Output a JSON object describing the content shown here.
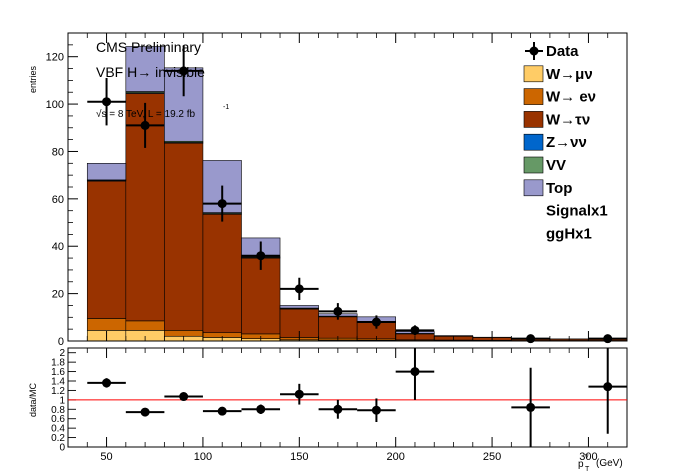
{
  "chart_data": {
    "type": "bar",
    "subtype": "stacked-histogram-with-ratio",
    "annotations": {
      "experiment": "CMS Preliminary",
      "process": "VBF H→ invisible",
      "energy_lumi": "√s = 8 TeV, L = 19.2 fb",
      "lumi_exponent": "-1"
    },
    "ylabel": "entries",
    "xlabel": "p",
    "xlabel_sup": "ν",
    "xlabel_sub": "T",
    "xlabel_unit": "(GeV)",
    "xlim": [
      30,
      320
    ],
    "ylim": [
      0,
      130
    ],
    "xticks": [
      "50",
      "100",
      "150",
      "200",
      "250",
      "300"
    ],
    "yticks": [
      "0",
      "20",
      "40",
      "60",
      "80",
      "100",
      "120"
    ],
    "bin_edges": [
      40,
      60,
      80,
      100,
      120,
      140,
      160,
      180,
      200,
      220,
      240,
      260,
      280,
      300,
      320
    ],
    "legend_position": "top-right",
    "legend": [
      {
        "label": "Data",
        "kind": "marker"
      },
      {
        "label": "W→μν",
        "kind": "box",
        "color": "#ffcc66"
      },
      {
        "label": "W→ eν",
        "kind": "box",
        "color": "#cc6600"
      },
      {
        "label": "W→τν",
        "kind": "box",
        "color": "#993300"
      },
      {
        "label": "Z→νν",
        "kind": "box",
        "color": "#0066cc"
      },
      {
        "label": "VV",
        "kind": "box",
        "color": "#669966"
      },
      {
        "label": "Top",
        "kind": "box",
        "color": "#9999cc"
      },
      {
        "label": "Signalx1",
        "kind": "text"
      },
      {
        "label": "ggHx1",
        "kind": "text"
      }
    ],
    "series": [
      {
        "name": "W→μν",
        "color": "#ffcc66",
        "values": [
          4.5,
          4.5,
          2,
          1.5,
          1,
          0.5,
          0.4,
          0.3,
          0.2,
          0.2,
          0.1,
          0.1,
          0.1,
          0.1
        ]
      },
      {
        "name": "W→ eν",
        "color": "#cc6600",
        "values": [
          5,
          4,
          2.5,
          2,
          2,
          1,
          0.8,
          0.6,
          0.3,
          0.2,
          0.2,
          0.1,
          0.1,
          0.1
        ]
      },
      {
        "name": "W→τν",
        "color": "#993300",
        "values": [
          58,
          96,
          79,
          50,
          32,
          12,
          9,
          7,
          2.5,
          1.6,
          1.2,
          0.7,
          0.6,
          0.8
        ]
      },
      {
        "name": "Z→νν",
        "color": "#0066cc",
        "values": [
          0.3,
          0.3,
          0.3,
          0.3,
          0.2,
          0.1,
          0.1,
          0.1,
          0.1,
          0,
          0,
          0,
          0,
          0
        ]
      },
      {
        "name": "VV",
        "color": "#669966",
        "values": [
          0.2,
          0.5,
          0.5,
          0.4,
          0.3,
          0.3,
          0.2,
          0.2,
          0.1,
          0,
          0,
          0,
          0,
          0
        ]
      },
      {
        "name": "Top",
        "color": "#9999cc",
        "values": [
          7,
          19,
          31,
          22,
          8,
          1.1,
          1,
          2,
          0.8,
          0.3,
          0.1,
          0.1,
          0.1,
          0.1
        ]
      }
    ],
    "data_points": [
      {
        "x": 50,
        "y": 101,
        "err": 10
      },
      {
        "x": 70,
        "y": 91,
        "err": 9.5
      },
      {
        "x": 90,
        "y": 114,
        "err": 10.7
      },
      {
        "x": 110,
        "y": 58,
        "err": 7.6
      },
      {
        "x": 130,
        "y": 36,
        "err": 6
      },
      {
        "x": 150,
        "y": 22,
        "err": 4.7
      },
      {
        "x": 170,
        "y": 12.5,
        "err": 3.5
      },
      {
        "x": 190,
        "y": 8,
        "err": 2.8
      },
      {
        "x": 210,
        "y": 4.5,
        "err": 2.1
      },
      {
        "x": 270,
        "y": 1,
        "err": 1
      },
      {
        "x": 310,
        "y": 1,
        "err": 1
      }
    ],
    "ratio": {
      "ylabel": "data/MC",
      "ylim": [
        0,
        2.1
      ],
      "yticks": [
        "0",
        "0.2",
        "0.4",
        "0.6",
        "0.8",
        "1",
        "1.2",
        "1.4",
        "1.6",
        "1.8",
        "2"
      ],
      "reference": 1,
      "points": [
        {
          "x": 50,
          "y": 1.36,
          "err": 0.1
        },
        {
          "x": 70,
          "y": 0.74,
          "err": 0.03
        },
        {
          "x": 90,
          "y": 1.07,
          "err": 0.08
        },
        {
          "x": 110,
          "y": 0.76,
          "err": 0.08
        },
        {
          "x": 130,
          "y": 0.8,
          "err": 0.1
        },
        {
          "x": 150,
          "y": 1.12,
          "err": 0.22
        },
        {
          "x": 170,
          "y": 0.8,
          "err": 0.2
        },
        {
          "x": 190,
          "y": 0.78,
          "err": 0.25
        },
        {
          "x": 210,
          "y": 1.6,
          "err": 0.6
        },
        {
          "x": 270,
          "y": 0.84,
          "err": 0.84
        },
        {
          "x": 310,
          "y": 1.28,
          "err": 1
        }
      ]
    }
  }
}
